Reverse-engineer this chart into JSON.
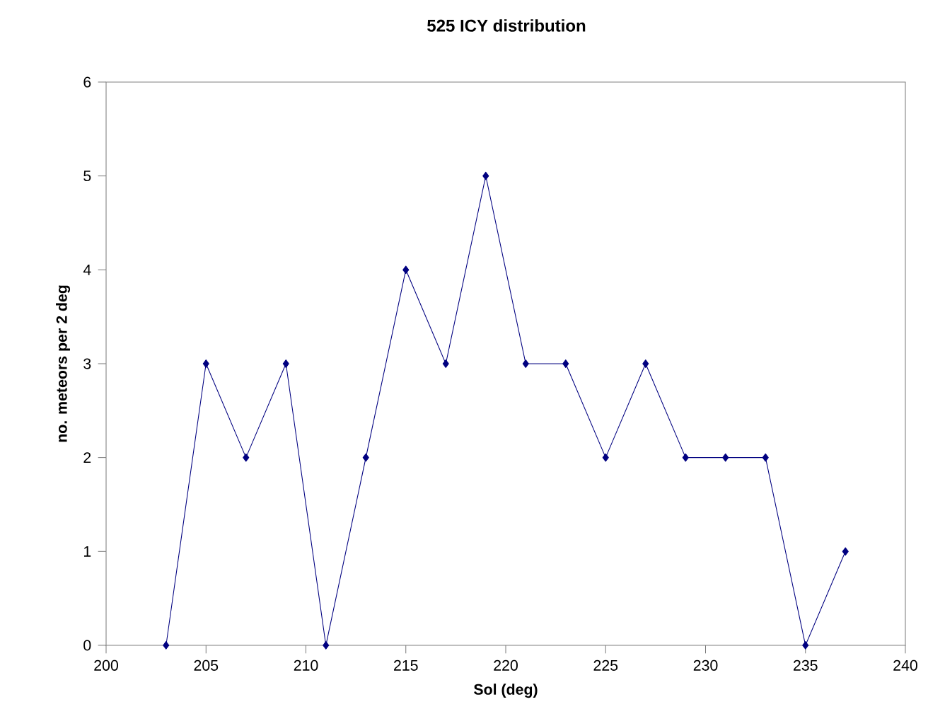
{
  "chart_data": {
    "type": "line",
    "title": "525 ICY distribution",
    "xlabel": "Sol (deg)",
    "ylabel": "no. meteors per 2 deg",
    "x": [
      203,
      205,
      207,
      209,
      211,
      213,
      215,
      217,
      219,
      221,
      223,
      225,
      227,
      229,
      231,
      233,
      235,
      237
    ],
    "values": [
      0,
      3,
      2,
      3,
      0,
      2,
      4,
      3,
      5,
      3,
      3,
      2,
      3,
      2,
      2,
      2,
      0,
      1
    ],
    "color": "#000080",
    "marker": "diamond",
    "line_style": "solid",
    "grid": false,
    "xlim": [
      200,
      240
    ],
    "xticks": [
      200,
      205,
      210,
      215,
      220,
      225,
      230,
      235,
      240
    ],
    "ylim": [
      0,
      6
    ],
    "yticks": [
      0,
      1,
      2,
      3,
      4,
      5,
      6
    ]
  }
}
